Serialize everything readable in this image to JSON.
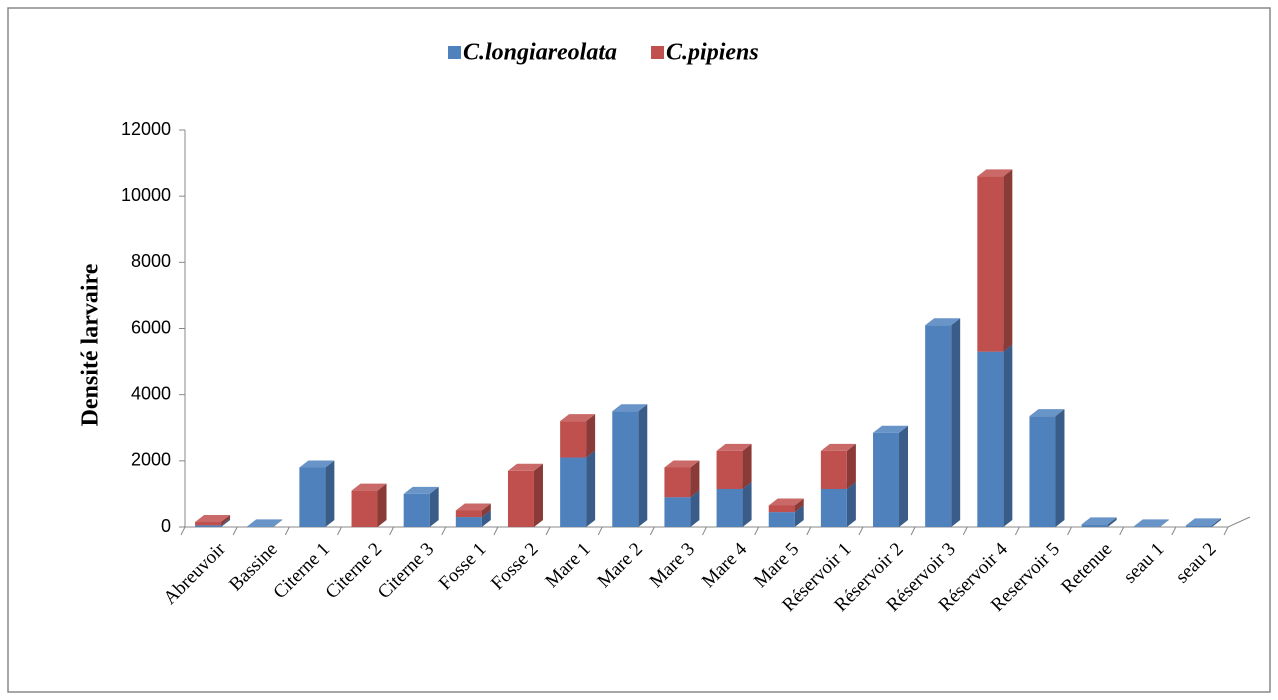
{
  "chart_data": {
    "type": "bar3d_stacked",
    "y_label": "Densité larvaire",
    "categories": [
      "Abreuvoir",
      "Bassine",
      "Citerne 1",
      "Citerne 2",
      "Citerne 3",
      "Fosse 1",
      "Fosse 2",
      "Mare 1",
      "Mare 2",
      "Mare 3",
      "Mare 4",
      "Mare 5",
      "Réservoir 1",
      "Réservoir 2",
      "Réservoir 3",
      "Réservoir 4",
      "Reservoir 5",
      "Retenue",
      "seau 1",
      "seau 2"
    ],
    "series": [
      {
        "name": "C.longiareolata",
        "color": "#4f81bd",
        "values": [
          50,
          20,
          1800,
          0,
          1000,
          300,
          0,
          2100,
          3500,
          900,
          1150,
          450,
          1150,
          2850,
          6100,
          5300,
          3350,
          80,
          20,
          50
        ]
      },
      {
        "name": "C.pipiens",
        "color": "#c0504d",
        "values": [
          100,
          0,
          0,
          1100,
          0,
          200,
          1700,
          1100,
          0,
          900,
          1150,
          200,
          1150,
          0,
          0,
          5300,
          0,
          0,
          0,
          0
        ]
      }
    ],
    "ylim": [
      0,
      12000
    ],
    "yticks": [
      0,
      2000,
      4000,
      6000,
      8000,
      10000,
      12000
    ],
    "legend": "top"
  }
}
